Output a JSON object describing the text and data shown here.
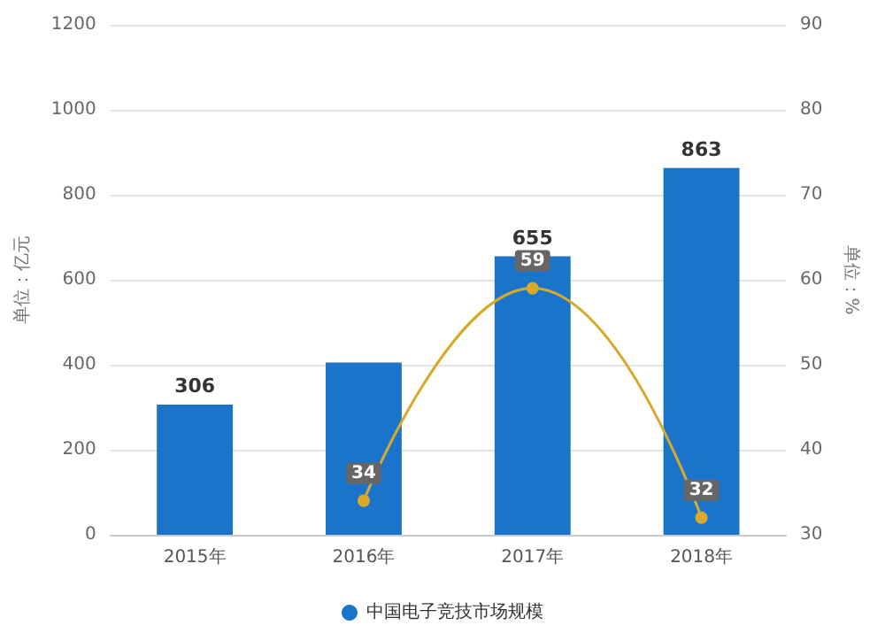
{
  "chart_data": {
    "type": "bar",
    "categories": [
      "2015年",
      "2016年",
      "2017年",
      "2018年"
    ],
    "ylabel": "单位：亿元",
    "y2label": "单位：%",
    "series": [
      {
        "name": "中国电子竞技市场规模",
        "color": "#1a74c9",
        "values": [
          306,
          405,
          655,
          863
        ],
        "value_labels": [
          "306",
          null,
          "655",
          "863"
        ]
      },
      {
        "type": "line",
        "axis": "y2",
        "color": "#d9aa2a",
        "values": [
          null,
          34,
          59,
          32
        ],
        "value_labels": [
          null,
          "34",
          "59",
          "32"
        ]
      }
    ],
    "ylim": [
      0,
      1200
    ],
    "yticks": [
      0,
      200,
      400,
      600,
      800,
      1000,
      1200
    ],
    "y2lim": [
      30,
      90
    ],
    "y2ticks": [
      30,
      40,
      50,
      60,
      70,
      80,
      90
    ],
    "grid": "y",
    "legend": "bottom",
    "marker": "circle"
  }
}
